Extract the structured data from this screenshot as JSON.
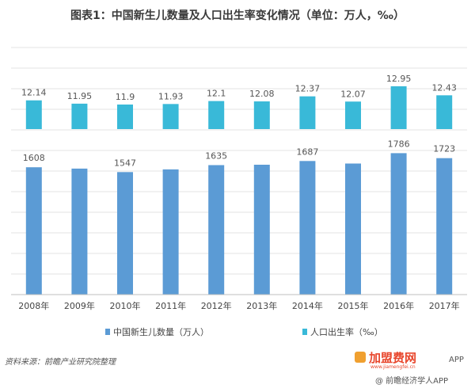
{
  "title": "图表1：中国新生儿数量及人口出生率变化情况（单位：万人，‰）",
  "source": "资料来源：前瞻产业研究院整理",
  "logo": {
    "brand": "加盟费网",
    "url": "www.jiamengfei.cn",
    "app_text": "APP",
    "app_line": "@ 前瞻经济学人APP"
  },
  "colors": {
    "births": "#5b9bd5",
    "rate": "#39b9d8",
    "grid": "#e3e3e3"
  },
  "chart_data": {
    "type": "bar",
    "categories": [
      "2008年",
      "2009年",
      "2010年",
      "2011年",
      "2012年",
      "2013年",
      "2014年",
      "2015年",
      "2016年",
      "2017年"
    ],
    "series": [
      {
        "name": "中国新生儿数量（万人）",
        "values": [
          1608,
          1591,
          1547,
          1581,
          1635,
          1640,
          1687,
          1655,
          1786,
          1723
        ],
        "labels": [
          "1608",
          "",
          "1547",
          "",
          "1635",
          "",
          "1687",
          "",
          "1786",
          "1723"
        ]
      },
      {
        "name": "人口出生率（‰）",
        "values": [
          12.14,
          11.95,
          11.9,
          11.93,
          12.1,
          12.08,
          12.37,
          12.07,
          12.95,
          12.43
        ],
        "labels": [
          "12.14",
          "11.95",
          "11.9",
          "11.93",
          "12.1",
          "12.08",
          "12.37",
          "12.07",
          "12.95",
          "12.43"
        ]
      }
    ],
    "legend": "bottom",
    "grid": true
  }
}
